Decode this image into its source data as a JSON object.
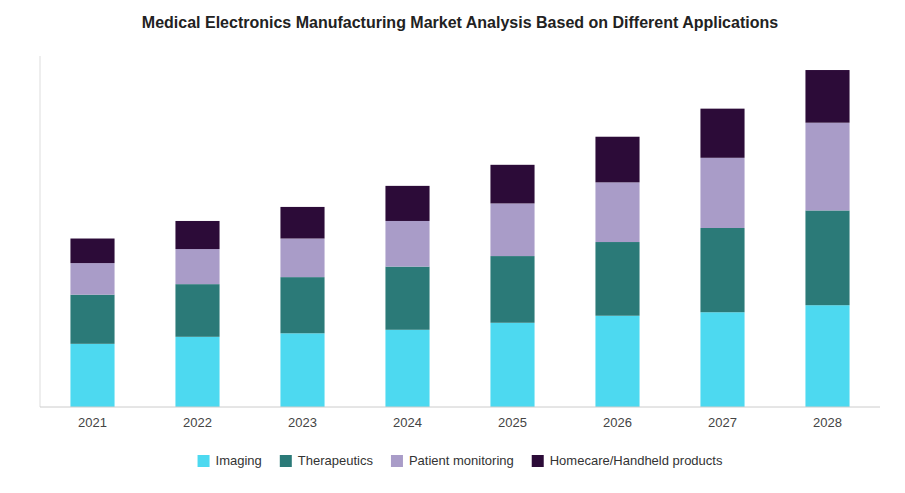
{
  "chart_data": {
    "type": "bar",
    "title": "Medical Electronics Manufacturing Market Analysis Based on Different Applications",
    "categories": [
      "2021",
      "2022",
      "2023",
      "2024",
      "2025",
      "2026",
      "2027",
      "2028"
    ],
    "series": [
      {
        "name": "Imaging",
        "color": "#4DD9F0",
        "values": [
          18,
          20,
          21,
          22,
          24,
          26,
          27,
          29
        ]
      },
      {
        "name": "Therapeutics",
        "color": "#2B7A78",
        "values": [
          14,
          15,
          16,
          18,
          19,
          21,
          24,
          27
        ]
      },
      {
        "name": "Patient monitoring",
        "color": "#A99CC8",
        "values": [
          9,
          10,
          11,
          13,
          15,
          17,
          20,
          25
        ]
      },
      {
        "name": "Homecare/Handheld products",
        "color": "#2C0B38",
        "values": [
          7,
          8,
          9,
          10,
          11,
          13,
          14,
          15
        ]
      }
    ],
    "stacked": true,
    "ylim": [
      0,
      100
    ],
    "yticks": [],
    "tick_labels": "x",
    "grid": false,
    "legend": "bottom"
  }
}
